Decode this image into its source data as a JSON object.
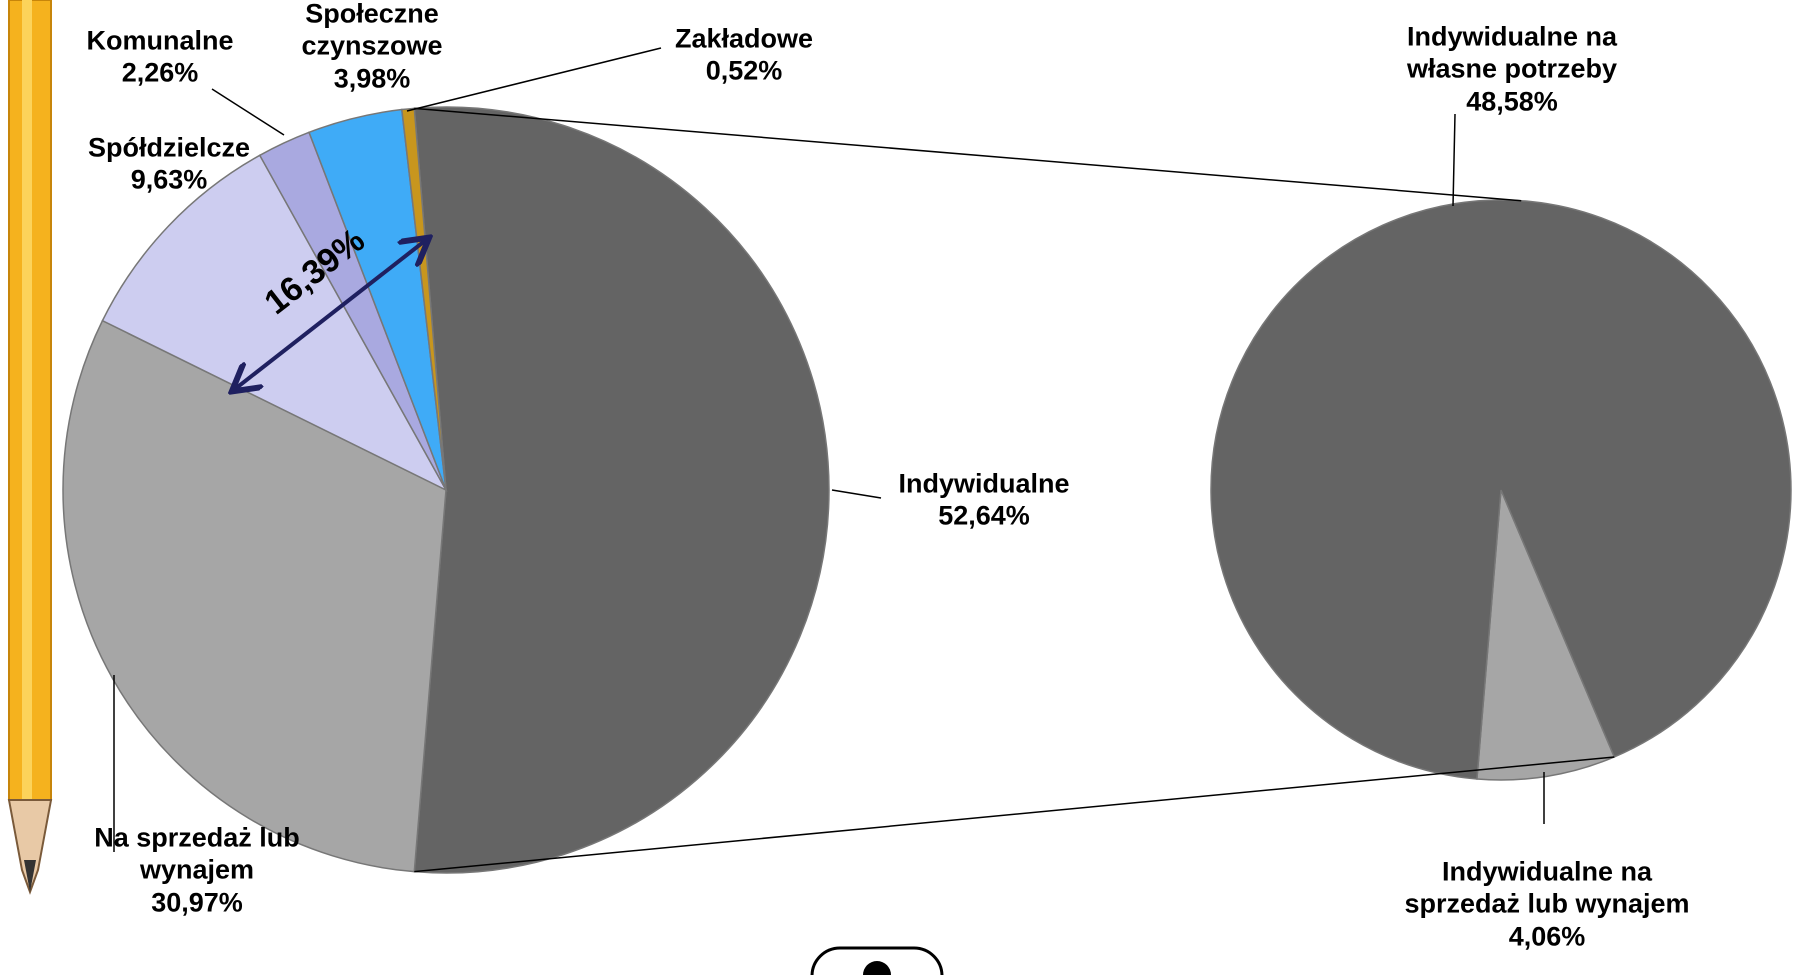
{
  "chart_data": {
    "type": "pie-of-pie",
    "categories": [
      "Indywidualne",
      "Na sprzedaż lub wynajem",
      "Spółdzielcze",
      "Komunalne",
      "Społeczne czynszowe",
      "Zakładowe"
    ],
    "values": [
      52.64,
      30.97,
      9.63,
      2.26,
      3.98,
      0.52
    ],
    "value_labels": [
      "52,64%",
      "30,97%",
      "9,63%",
      "2,26%",
      "3,98%",
      "0,52%"
    ],
    "colors": [
      "#646464",
      "#a6a6a6",
      "#cdcdf0",
      "#a9a9e0",
      "#3fabf7",
      "#c8961e"
    ],
    "secondary": {
      "categories": [
        "Indywidualne na sprzedaż lub wynajem",
        "Indywidualne na własne potrzeby"
      ],
      "values": [
        4.06,
        48.58
      ],
      "value_labels": [
        "4,06%",
        "48,58%"
      ],
      "colors": [
        "#a6a6a6",
        "#646464"
      ]
    },
    "annotation": "16,39%"
  }
}
